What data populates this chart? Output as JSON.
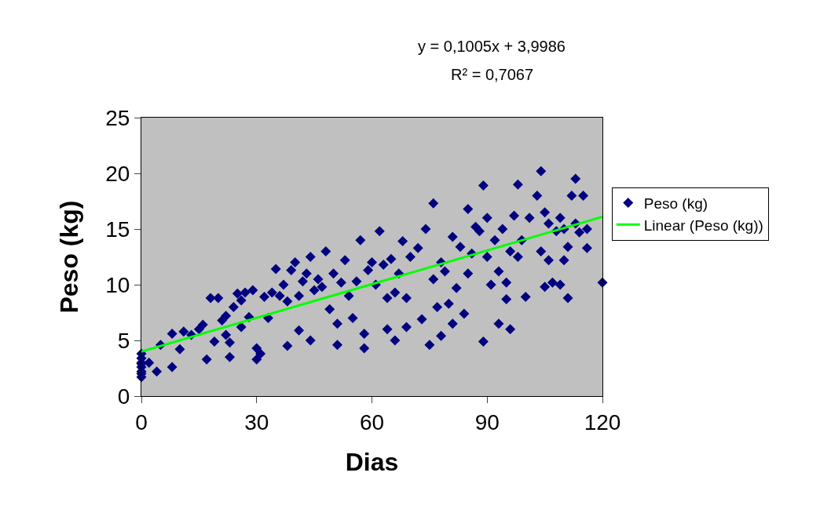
{
  "chart_data": {
    "type": "scatter",
    "xlabel": "Dias",
    "ylabel": "Peso (kg)",
    "annotations": [
      "y = 0,1005x + 3,9986",
      "R² = 0,7067"
    ],
    "xlim": [
      0,
      120
    ],
    "xticks": [
      0,
      30,
      60,
      90,
      120
    ],
    "ylim": [
      0,
      25
    ],
    "yticks": [
      0,
      5,
      10,
      15,
      20,
      25
    ],
    "grid": false,
    "legend": "right",
    "marker": "diamond",
    "series": [
      {
        "name": "Peso (kg)",
        "color": "#000080",
        "x": [
          0,
          0,
          0,
          0,
          0,
          0,
          0,
          0,
          2,
          4,
          5,
          8,
          8,
          10,
          11,
          13,
          15,
          16,
          17,
          18,
          19,
          20,
          21,
          22,
          22,
          23,
          23,
          24,
          25,
          26,
          26,
          27,
          28,
          29,
          30,
          30,
          31,
          32,
          33,
          34,
          35,
          36,
          37,
          38,
          38,
          39,
          40,
          41,
          41,
          42,
          43,
          44,
          44,
          45,
          46,
          47,
          48,
          49,
          50,
          51,
          51,
          52,
          53,
          54,
          55,
          56,
          57,
          58,
          58,
          59,
          60,
          61,
          62,
          63,
          64,
          64,
          65,
          66,
          66,
          67,
          68,
          69,
          69,
          70,
          72,
          73,
          74,
          75,
          76,
          76,
          77,
          78,
          78,
          79,
          80,
          81,
          81,
          82,
          83,
          84,
          85,
          85,
          86,
          87,
          88,
          89,
          89,
          90,
          90,
          91,
          92,
          93,
          93,
          94,
          95,
          95,
          96,
          96,
          97,
          98,
          98,
          99,
          100,
          101,
          103,
          104,
          104,
          105,
          105,
          106,
          106,
          107,
          108,
          109,
          109,
          110,
          110,
          111,
          111,
          112,
          113,
          113,
          114,
          115,
          116,
          116,
          120
        ],
        "values": [
          1.7,
          2.2,
          2.6,
          3.0,
          3.4,
          3.8,
          2.0,
          2.9,
          3.0,
          2.2,
          4.6,
          2.6,
          5.6,
          4.2,
          5.8,
          5.5,
          6.0,
          6.4,
          3.3,
          8.8,
          4.9,
          8.8,
          6.8,
          7.2,
          5.5,
          4.8,
          3.5,
          8.0,
          9.2,
          6.2,
          8.6,
          9.3,
          7.1,
          9.5,
          3.3,
          4.3,
          3.8,
          8.9,
          7.0,
          9.3,
          11.4,
          9.0,
          10.0,
          4.5,
          8.5,
          11.3,
          12.0,
          9.0,
          5.9,
          10.3,
          11.0,
          12.5,
          5.0,
          9.5,
          10.5,
          9.8,
          13.0,
          7.8,
          11.0,
          4.6,
          6.5,
          10.2,
          12.2,
          9.0,
          7.0,
          10.3,
          14.0,
          5.6,
          4.3,
          11.3,
          12.0,
          10.0,
          14.8,
          11.8,
          8.8,
          6.0,
          12.3,
          5.0,
          9.3,
          11.0,
          13.9,
          8.8,
          6.2,
          12.5,
          13.3,
          6.9,
          15.0,
          4.6,
          10.5,
          17.3,
          8.0,
          5.4,
          12.0,
          11.2,
          8.3,
          14.3,
          6.5,
          9.7,
          13.4,
          7.4,
          16.8,
          11.0,
          12.8,
          15.2,
          14.8,
          18.9,
          4.9,
          16.0,
          12.5,
          10.0,
          14.0,
          11.2,
          6.5,
          15.0,
          10.2,
          8.7,
          13.0,
          6.0,
          16.2,
          12.5,
          19.0,
          14.0,
          8.9,
          16.0,
          18.0,
          20.2,
          13.0,
          9.8,
          16.5,
          15.5,
          12.2,
          10.2,
          14.8,
          16.0,
          10.0,
          12.2,
          15.0,
          8.8,
          13.4,
          18.0,
          15.5,
          19.5,
          14.7,
          18.0,
          13.3,
          15.0,
          10.2
        ]
      },
      {
        "name": "Linear (Peso (kg))",
        "type": "line",
        "marker": "none",
        "color": "#00ff00",
        "x": [
          0,
          120
        ],
        "values": [
          4.0,
          16.1
        ]
      }
    ]
  }
}
